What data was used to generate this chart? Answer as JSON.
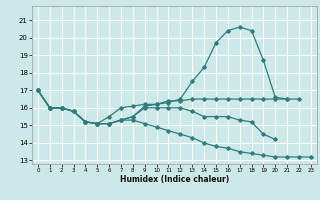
{
  "title": "",
  "xlabel": "Humidex (Indice chaleur)",
  "bg_color": "#cde8e8",
  "grid_color": "#ffffff",
  "line_color": "#2e7d7d",
  "xlim": [
    -0.5,
    23.5
  ],
  "ylim": [
    12.8,
    21.8
  ],
  "yticks": [
    13,
    14,
    15,
    16,
    17,
    18,
    19,
    20,
    21
  ],
  "xticks": [
    0,
    1,
    2,
    3,
    4,
    5,
    6,
    7,
    8,
    9,
    10,
    11,
    12,
    13,
    14,
    15,
    16,
    17,
    18,
    19,
    20,
    21,
    22,
    23
  ],
  "series": [
    {
      "x": [
        0,
        1,
        2,
        3,
        4,
        5,
        6,
        7,
        8,
        9,
        10,
        11,
        12,
        13,
        14,
        15,
        16,
        17,
        18,
        19,
        20,
        21
      ],
      "y": [
        17.0,
        16.0,
        16.0,
        15.8,
        15.2,
        15.1,
        15.1,
        15.3,
        15.5,
        16.1,
        16.2,
        16.3,
        16.5,
        17.5,
        18.3,
        19.7,
        20.4,
        20.6,
        20.4,
        18.7,
        16.6,
        16.5
      ]
    },
    {
      "x": [
        0,
        1,
        2,
        3,
        4,
        5,
        6,
        7,
        8,
        9,
        10,
        11,
        12,
        13,
        14,
        15,
        16,
        17,
        18,
        19,
        20,
        21,
        22
      ],
      "y": [
        17.0,
        16.0,
        16.0,
        15.8,
        15.2,
        15.1,
        15.5,
        16.0,
        16.1,
        16.2,
        16.2,
        16.4,
        16.4,
        16.5,
        16.5,
        16.5,
        16.5,
        16.5,
        16.5,
        16.5,
        16.5,
        16.5,
        16.5
      ]
    },
    {
      "x": [
        0,
        1,
        2,
        3,
        4,
        5,
        6,
        7,
        8,
        9,
        10,
        11,
        12,
        13,
        14,
        15,
        16,
        17,
        18,
        19,
        20
      ],
      "y": [
        17.0,
        16.0,
        16.0,
        15.8,
        15.2,
        15.1,
        15.1,
        15.3,
        15.5,
        16.0,
        16.0,
        16.0,
        16.0,
        15.8,
        15.5,
        15.5,
        15.5,
        15.3,
        15.2,
        14.5,
        14.2
      ]
    },
    {
      "x": [
        0,
        1,
        2,
        3,
        4,
        5,
        6,
        7,
        8,
        9,
        10,
        11,
        12,
        13,
        14,
        15,
        16,
        17,
        18,
        19,
        20,
        21,
        22,
        23
      ],
      "y": [
        17.0,
        16.0,
        16.0,
        15.8,
        15.2,
        15.1,
        15.1,
        15.3,
        15.3,
        15.1,
        14.9,
        14.7,
        14.5,
        14.3,
        14.0,
        13.8,
        13.7,
        13.5,
        13.4,
        13.3,
        13.2,
        13.2,
        13.2,
        13.2
      ]
    }
  ]
}
